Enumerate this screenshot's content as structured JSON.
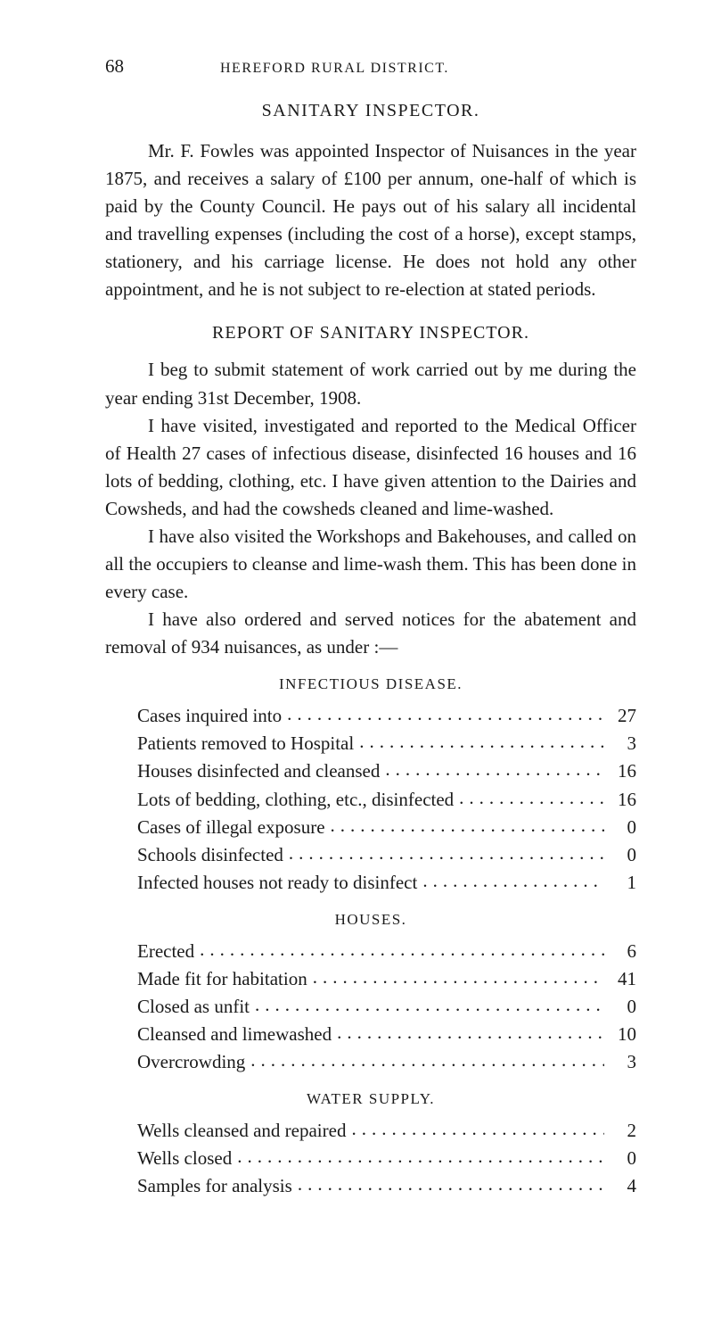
{
  "page_number": "68",
  "running_head": "HEREFORD RURAL DISTRICT.",
  "title1": "SANITARY INSPECTOR.",
  "para1": "Mr. F. Fowles was appointed Inspector of Nuisances in the year 1875, and receives a salary of £100 per annum, one-half of which is paid by the County Council. He pays out of his salary all incidental and travelling expenses (including the cost of a horse), except stamps, stationery, and his carriage license. He does not hold any other appointment, and he is not subject to re-election at stated periods.",
  "title2": "REPORT OF SANITARY INSPECTOR.",
  "para2": "I beg to submit statement of work carried out by me during the year ending 31st December, 1908.",
  "para3": "I have visited, investigated and reported to the Medical Officer of Health 27 cases of infectious disease, disinfected 16 houses and 16 lots of bedding, clothing, etc. I have given attention to the Dairies and Cowsheds, and had the cowsheds cleaned and lime-washed.",
  "para4": "I have also visited the Workshops and Bakehouses, and called on all the occupiers to cleanse and lime-wash them. This has been done in every case.",
  "para5": "I have also ordered and served notices for the abatement and removal of 934 nuisances, as under :—",
  "sections": [
    {
      "heading": "INFECTIOUS DISEASE.",
      "rows": [
        {
          "label": "Cases inquired into",
          "value": "27"
        },
        {
          "label": "Patients removed to Hospital",
          "value": "3"
        },
        {
          "label": "Houses disinfected and cleansed",
          "value": "16"
        },
        {
          "label": "Lots of bedding, clothing, etc., disinfected",
          "value": "16"
        },
        {
          "label": "Cases of illegal exposure",
          "value": "0"
        },
        {
          "label": "Schools disinfected",
          "value": "0"
        },
        {
          "label": "Infected houses not ready to disinfect",
          "value": "1"
        }
      ]
    },
    {
      "heading": "HOUSES.",
      "rows": [
        {
          "label": "Erected",
          "value": "6"
        },
        {
          "label": "Made fit for habitation",
          "value": "41"
        },
        {
          "label": "Closed as unfit",
          "value": "0"
        },
        {
          "label": "Cleansed and limewashed",
          "value": "10"
        },
        {
          "label": "Overcrowding",
          "value": "3"
        }
      ]
    },
    {
      "heading": "WATER SUPPLY.",
      "rows": [
        {
          "label": "Wells cleansed and repaired",
          "value": "2"
        },
        {
          "label": "Wells closed",
          "value": "0"
        },
        {
          "label": "Samples for analysis",
          "value": "4"
        }
      ]
    }
  ]
}
